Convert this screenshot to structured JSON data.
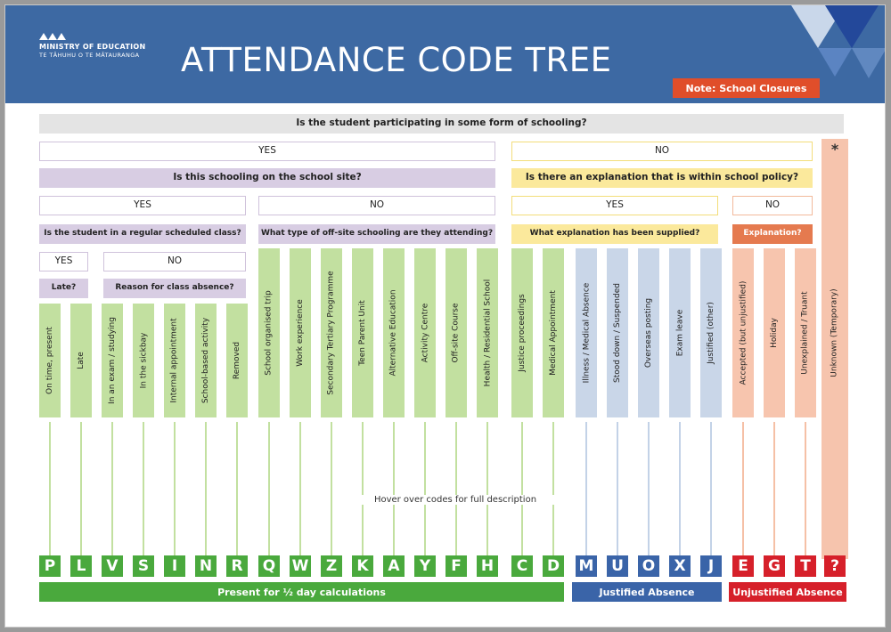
{
  "header": {
    "ministry_line1": "MINISTRY OF EDUCATION",
    "ministry_line2": "TE TĀHUHU O TE MĀTAURANGA",
    "title": "ATTENDANCE CODE TREE",
    "note_button": "Note: School Closures",
    "logo_icon": "mountain-peaks-logo-icon"
  },
  "tree": {
    "root_question": "Is the student participating in some form of schooling?",
    "yes": "YES",
    "no": "NO",
    "q_onsite": "Is this schooling on the school site?",
    "q_explanation": "Is there an explanation that is within school policy?",
    "q_regular_class": "Is the student in a regular scheduled class?",
    "q_offsite_type": "What type of off-site schooling are they attending?",
    "q_explanation_supplied": "What explanation has been supplied?",
    "q_explanation_short": "Explanation?",
    "q_late": "Late?",
    "q_reason_absence": "Reason for class absence?",
    "star": "*",
    "hover_hint": "Hover over codes for full description"
  },
  "codes": [
    {
      "code": "P",
      "label": "On time, present"
    },
    {
      "code": "L",
      "label": "Late"
    },
    {
      "code": "V",
      "label": "In an exam / studying"
    },
    {
      "code": "S",
      "label": "In the sickbay"
    },
    {
      "code": "I",
      "label": "Internal appointment"
    },
    {
      "code": "N",
      "label": "School-based activity"
    },
    {
      "code": "R",
      "label": "Removed"
    },
    {
      "code": "Q",
      "label": "School organised trip"
    },
    {
      "code": "W",
      "label": "Work experience"
    },
    {
      "code": "Z",
      "label": "Secondary Tertiary Programme"
    },
    {
      "code": "K",
      "label": "Teen Parent Unit"
    },
    {
      "code": "A",
      "label": "Alternative Education"
    },
    {
      "code": "Y",
      "label": "Activity Centre"
    },
    {
      "code": "F",
      "label": "Off-site Course"
    },
    {
      "code": "H",
      "label": "Health / Residential School"
    },
    {
      "code": "C",
      "label": "Justice proceedings"
    },
    {
      "code": "D",
      "label": "Medical Appointment"
    },
    {
      "code": "M",
      "label": "Illness / Medical Absence"
    },
    {
      "code": "U",
      "label": "Stood down / Suspended"
    },
    {
      "code": "O",
      "label": "Overseas posting"
    },
    {
      "code": "X",
      "label": "Exam leave"
    },
    {
      "code": "J",
      "label": "Justified (other)"
    },
    {
      "code": "E",
      "label": "Accepted (but unjustified)"
    },
    {
      "code": "G",
      "label": "Holiday"
    },
    {
      "code": "T",
      "label": "Unexplained / Truant"
    },
    {
      "code": "?",
      "label": "Unknown (Temporary)"
    }
  ],
  "categories": {
    "present": "Present for ½ day calculations",
    "justified": "Justified Absence",
    "unjustified": "Unjustified Absence"
  },
  "colors": {
    "header_blue": "#3d69a3",
    "present_green": "#4aa93d",
    "justified_blue": "#3a64a8",
    "unjustified_red": "#d6202a",
    "note_orange": "#e04e2a"
  }
}
